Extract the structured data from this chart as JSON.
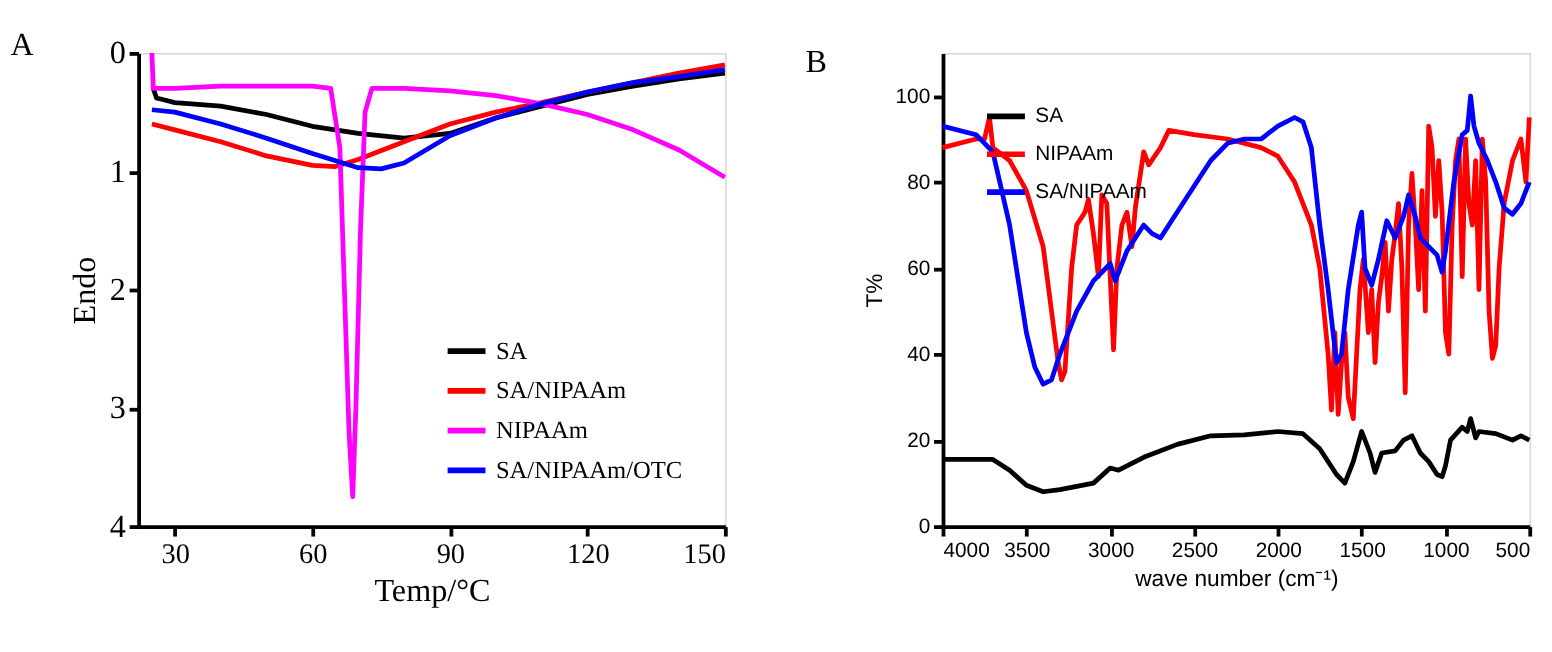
{
  "chart_data": [
    {
      "type": "line",
      "title": "A",
      "xlabel": "Temp/°C",
      "ylabel": "Endo",
      "xlim": [
        22,
        150
      ],
      "ylim": [
        4,
        0
      ],
      "xticks": [
        30,
        60,
        90,
        120,
        150
      ],
      "yticks": [
        0,
        1,
        2,
        3,
        4
      ],
      "grid": false,
      "legend": "bottom right",
      "marker": "none",
      "line_style": "solid",
      "series": [
        {
          "name": "SA",
          "color": "#000000",
          "x": [
            25.3,
            26,
            28,
            30,
            40,
            50,
            60,
            70,
            80,
            90,
            100,
            110,
            120,
            130,
            140,
            150
          ],
          "values": [
            0.3,
            0.38,
            0.4,
            0.42,
            0.45,
            0.52,
            0.62,
            0.68,
            0.72,
            0.68,
            0.55,
            0.45,
            0.35,
            0.28,
            0.22,
            0.17
          ]
        },
        {
          "name": "SA/NIPAAm",
          "color": "#ff0000",
          "x": [
            25,
            30,
            40,
            50,
            60,
            65,
            70,
            80,
            90,
            100,
            110,
            120,
            130,
            140,
            150
          ],
          "values": [
            0.6,
            0.65,
            0.75,
            0.87,
            0.95,
            0.96,
            0.9,
            0.75,
            0.6,
            0.5,
            0.42,
            0.33,
            0.25,
            0.17,
            0.1
          ]
        },
        {
          "name": "NIPAAm",
          "color": "#ff00ff",
          "x": [
            25,
            25.3,
            30,
            40,
            50,
            60,
            64,
            66,
            67,
            68,
            68.8,
            69.5,
            70.5,
            71.5,
            73,
            80,
            90,
            100,
            110,
            120,
            130,
            140,
            150
          ],
          "values": [
            0.0,
            0.3,
            0.3,
            0.28,
            0.28,
            0.28,
            0.3,
            0.8,
            2,
            3.2,
            3.75,
            3,
            1.5,
            0.5,
            0.3,
            0.3,
            0.32,
            0.36,
            0.43,
            0.52,
            0.65,
            0.82,
            1.05
          ]
        },
        {
          "name": "SA/NIPAAm/OTC",
          "color": "#0000ff",
          "x": [
            25,
            30,
            40,
            50,
            60,
            70,
            75,
            80,
            90,
            100,
            110,
            120,
            130,
            140,
            150
          ],
          "values": [
            0.48,
            0.5,
            0.6,
            0.72,
            0.85,
            0.97,
            0.98,
            0.93,
            0.7,
            0.55,
            0.43,
            0.33,
            0.25,
            0.2,
            0.14
          ]
        }
      ]
    },
    {
      "type": "line",
      "title": "B",
      "xlabel": "wave number (cm⁻¹)",
      "ylabel": "T%",
      "xlim": [
        4000,
        500
      ],
      "ylim": [
        0,
        110
      ],
      "xticks": [
        4000,
        3500,
        3000,
        2500,
        2000,
        1500,
        1000,
        500
      ],
      "yticks": [
        0,
        20,
        40,
        60,
        80,
        100
      ],
      "grid": false,
      "legend": "top left",
      "marker": "none",
      "line_style": "solid",
      "series": [
        {
          "name": "SA",
          "color": "#000000",
          "x": [
            4000,
            3700,
            3600,
            3500,
            3400,
            3300,
            3100,
            3000,
            2950,
            2800,
            2600,
            2400,
            2200,
            2000,
            1850,
            1750,
            1650,
            1600,
            1550,
            1500,
            1450,
            1420,
            1380,
            1300,
            1250,
            1200,
            1150,
            1100,
            1050,
            1020,
            1000,
            970,
            900,
            870,
            850,
            820,
            800,
            700,
            600,
            550,
            500
          ],
          "values": [
            15.5,
            15.5,
            13,
            9.5,
            8,
            8.5,
            10,
            13.5,
            13,
            16,
            19,
            21,
            21.2,
            22,
            21.5,
            18,
            12,
            10,
            15,
            22,
            17,
            12.5,
            17,
            17.5,
            20,
            21,
            17,
            15,
            12,
            11.5,
            14,
            20,
            23,
            22,
            25,
            20.5,
            22,
            21.5,
            20,
            21,
            20
          ]
        },
        {
          "name": "NIPAAm",
          "color": "#ff0000",
          "x": [
            4000,
            3800,
            3750,
            3720,
            3700,
            3600,
            3500,
            3400,
            3350,
            3310,
            3290,
            3270,
            3230,
            3200,
            3150,
            3130,
            3100,
            3070,
            3050,
            3020,
            2980,
            2960,
            2930,
            2900,
            2870,
            2850,
            2800,
            2770,
            2700,
            2650,
            2500,
            2300,
            2100,
            2000,
            1900,
            1850,
            1800,
            1750,
            1700,
            1680,
            1660,
            1640,
            1620,
            1600,
            1580,
            1550,
            1530,
            1510,
            1490,
            1460,
            1440,
            1420,
            1400,
            1380,
            1360,
            1340,
            1320,
            1300,
            1280,
            1260,
            1240,
            1220,
            1200,
            1180,
            1160,
            1140,
            1120,
            1100,
            1080,
            1060,
            1040,
            1020,
            1000,
            980,
            960,
            940,
            920,
            900,
            880,
            860,
            840,
            820,
            800,
            780,
            760,
            740,
            720,
            700,
            680,
            650,
            600,
            550,
            520,
            500
          ],
          "values": [
            88,
            90,
            90,
            95,
            88,
            85,
            78,
            65,
            50,
            38,
            34,
            36,
            60,
            70,
            73,
            76,
            68,
            58,
            77,
            75,
            41,
            60,
            70,
            73,
            65,
            74,
            87,
            84,
            88,
            92,
            91,
            90,
            88,
            86,
            80,
            75,
            70,
            60,
            40,
            27,
            45,
            26,
            38,
            45,
            30,
            25,
            40,
            55,
            62,
            45,
            55,
            38,
            52,
            58,
            66,
            50,
            62,
            68,
            75,
            60,
            31,
            70,
            82,
            70,
            55,
            78,
            50,
            93,
            88,
            72,
            85,
            73,
            45,
            40,
            70,
            85,
            90,
            58,
            90,
            75,
            70,
            85,
            55,
            90,
            80,
            50,
            39,
            42,
            60,
            75,
            85,
            90,
            80,
            95
          ]
        },
        {
          "name": "SA/NIPAAm",
          "color": "#0000ff",
          "x": [
            4000,
            3800,
            3700,
            3600,
            3500,
            3450,
            3400,
            3350,
            3300,
            3200,
            3100,
            3000,
            2970,
            2900,
            2800,
            2750,
            2700,
            2650,
            2500,
            2400,
            2300,
            2200,
            2100,
            2000,
            1900,
            1850,
            1800,
            1750,
            1700,
            1650,
            1620,
            1580,
            1520,
            1500,
            1480,
            1440,
            1400,
            1350,
            1300,
            1250,
            1220,
            1180,
            1150,
            1100,
            1050,
            1020,
            1000,
            950,
            900,
            870,
            850,
            830,
            800,
            750,
            700,
            650,
            600,
            550,
            500
          ],
          "values": [
            93,
            91,
            87,
            70,
            45,
            37,
            33,
            34,
            40,
            50,
            57,
            61,
            57,
            64,
            70,
            68,
            67,
            70,
            79,
            85,
            89,
            90,
            90,
            93,
            95,
            94,
            88,
            70,
            55,
            38,
            40,
            55,
            70,
            73,
            60,
            56,
            62,
            71,
            67,
            72,
            77,
            72,
            67,
            65,
            63,
            59,
            64,
            80,
            91,
            92,
            100,
            93,
            89,
            85,
            80,
            74,
            72.5,
            75,
            80
          ]
        }
      ]
    }
  ]
}
